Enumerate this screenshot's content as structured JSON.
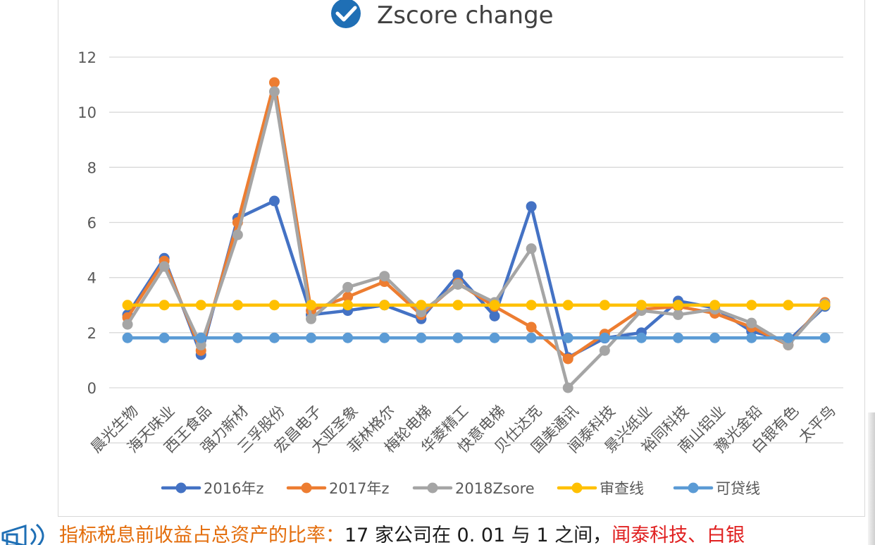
{
  "chart_data": {
    "type": "line",
    "title": "Zscore change",
    "xlabel": "",
    "ylabel": "",
    "ylim": [
      0,
      12
    ],
    "yticks": [
      0,
      2,
      4,
      6,
      8,
      10,
      12
    ],
    "grid": true,
    "legend_position": "bottom",
    "categories": [
      "晨光生物",
      "海天味业",
      "西王食品",
      "强力新材",
      "三孚股份",
      "宏昌电子",
      "大亚圣象",
      "菲林格尔",
      "梅轮电梯",
      "华菱精工",
      "快意电梯",
      "贝仕达克",
      "国美通讯",
      "闻泰科技",
      "景兴纸业",
      "裕同科技",
      "南山铝业",
      "豫光金铅",
      "白银有色",
      "太平鸟"
    ],
    "series": [
      {
        "name": "2016年z",
        "color": "#4472c4",
        "values": [
          2.65,
          4.7,
          1.2,
          6.15,
          6.78,
          2.65,
          2.8,
          3.0,
          2.5,
          4.1,
          2.6,
          6.58,
          1.1,
          1.8,
          2.0,
          3.15,
          2.9,
          2.05,
          1.7,
          2.95
        ]
      },
      {
        "name": "2017年z",
        "color": "#ed7d31",
        "values": [
          2.55,
          4.6,
          1.35,
          6.0,
          11.08,
          2.8,
          3.3,
          3.85,
          2.65,
          3.8,
          2.95,
          2.2,
          1.05,
          1.95,
          2.85,
          2.95,
          2.7,
          2.2,
          1.55,
          3.1
        ]
      },
      {
        "name": "2018Zsore",
        "color": "#a5a5a5",
        "values": [
          2.3,
          4.4,
          1.55,
          5.55,
          10.75,
          2.5,
          3.65,
          4.05,
          2.75,
          3.75,
          3.1,
          5.05,
          0.0,
          1.35,
          2.8,
          2.65,
          2.85,
          2.35,
          1.55,
          3.05
        ]
      },
      {
        "name": "审查线",
        "color": "#ffc000",
        "values": [
          3,
          3,
          3,
          3,
          3,
          3,
          3,
          3,
          3,
          3,
          3,
          3,
          3,
          3,
          3,
          3,
          3,
          3,
          3,
          3
        ]
      },
      {
        "name": "可贷线",
        "color": "#5b9bd5",
        "values": [
          1.81,
          1.81,
          1.81,
          1.81,
          1.81,
          1.81,
          1.81,
          1.81,
          1.81,
          1.81,
          1.81,
          1.81,
          1.81,
          1.81,
          1.81,
          1.81,
          1.81,
          1.81,
          1.81,
          1.81
        ]
      }
    ],
    "title_icon": "check-circle-icon"
  },
  "footer": {
    "icon": "megaphone-icon",
    "part1": "指标税息前收益占总资产的比率：",
    "part2": "17 家公司在 0. 01 与 1 之间，",
    "part3": "闻泰科技、白银"
  }
}
